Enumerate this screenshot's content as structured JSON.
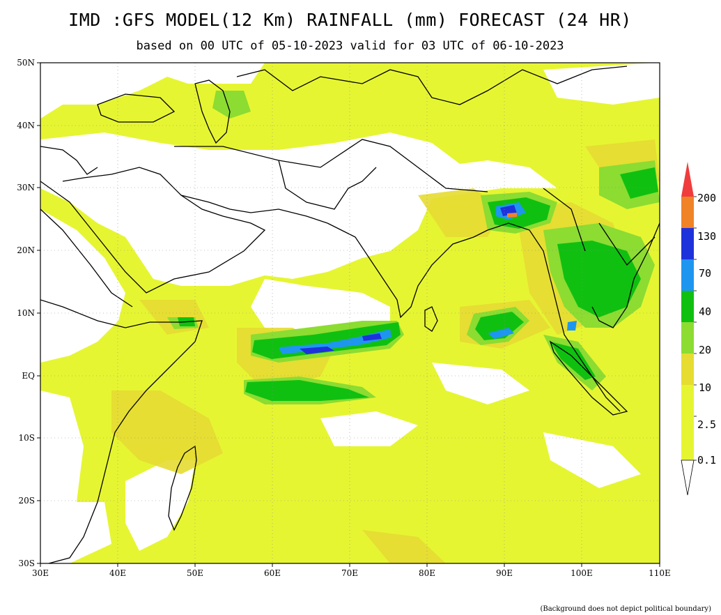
{
  "title": "IMD :GFS MODEL(12 Km) RAINFALL (mm) FORECAST (24 HR)",
  "subtitle": "based on 00 UTC of 05-10-2023 valid for 03 UTC of 06-10-2023",
  "footnote": "(Background does not depict political boundary)",
  "axes": {
    "lon_labels": [
      "30E",
      "40E",
      "50E",
      "60E",
      "70E",
      "80E",
      "90E",
      "100E",
      "110E"
    ],
    "lat_labels": [
      "50N",
      "40N",
      "30N",
      "20N",
      "10N",
      "EQ",
      "10S",
      "20S",
      "30S"
    ]
  },
  "legend": {
    "levels": [
      "200",
      "130",
      "70",
      "40",
      "20",
      "10",
      "2.5",
      "0.1"
    ],
    "colors": [
      "#f03c3c",
      "#f08228",
      "#1e32dc",
      "#1e96f0",
      "#10c010",
      "#8cdc32",
      "#e6dc32",
      "#e6f532"
    ]
  },
  "colors": {
    "land": "#ffffff",
    "light_rain": "#e6f532",
    "moderate_rain": "#e6dc32",
    "rain_20": "#8cdc32",
    "rain_40": "#10c010",
    "rain_70": "#1e96f0",
    "rain_130": "#1e32dc"
  }
}
